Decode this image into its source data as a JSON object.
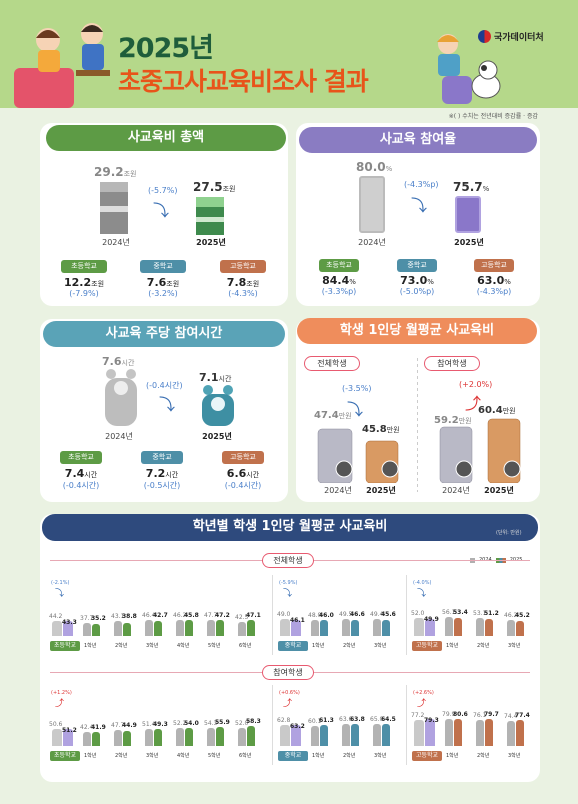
{
  "header": {
    "title_line1": "2025년",
    "title_line2": "초중고사교육비조사 결과",
    "org": "국가데이터처",
    "note": "※(    ) 수치는 전년대비 증감률 · 증감"
  },
  "total": {
    "title": "사교육비 총액",
    "y2024_label": "2024년",
    "y2025_label": "2025년",
    "v2024": "29.2",
    "v2025": "27.5",
    "unit": "조원",
    "change": "(-5.7%)",
    "schools": [
      {
        "tag": "초등학교",
        "value": "12.2",
        "unit": "조원",
        "change": "(-7.9%)"
      },
      {
        "tag": "중학교",
        "value": "7.6",
        "unit": "조원",
        "change": "(-3.2%)"
      },
      {
        "tag": "고등학교",
        "value": "7.8",
        "unit": "조원",
        "change": "(-4.3%)"
      }
    ]
  },
  "participation": {
    "title": "사교육 참여율",
    "y2024_label": "2024년",
    "y2025_label": "2025년",
    "v2024": "80.0",
    "v2025": "75.7",
    "unit": "%",
    "change": "(-4.3%p)",
    "schools": [
      {
        "tag": "초등학교",
        "value": "84.4",
        "unit": "%",
        "change": "(-3.3%p)"
      },
      {
        "tag": "중학교",
        "value": "73.0",
        "unit": "%",
        "change": "(-5.0%p)"
      },
      {
        "tag": "고등학교",
        "value": "63.0",
        "unit": "%",
        "change": "(-4.3%p)"
      }
    ]
  },
  "hours": {
    "title": "사교육 주당 참여시간",
    "y2024_label": "2024년",
    "y2025_label": "2025년",
    "v2024": "7.6",
    "v2025": "7.1",
    "unit": "시간",
    "change": "(-0.4시간)",
    "schools": [
      {
        "tag": "초등학교",
        "value": "7.4",
        "unit": "시간",
        "change": "(-0.4시간)"
      },
      {
        "tag": "중학교",
        "value": "7.2",
        "unit": "시간",
        "change": "(-0.5시간)"
      },
      {
        "tag": "고등학교",
        "value": "6.6",
        "unit": "시간",
        "change": "(-0.4시간)"
      }
    ]
  },
  "monthly": {
    "title": "학생 1인당 월평균 사교육비",
    "all": {
      "tag": "전체학생",
      "v2024": "47.4",
      "v2025": "45.8",
      "unit": "만원",
      "change": "(-3.5%)",
      "y2024_label": "2024년",
      "y2025_label": "2025년"
    },
    "part": {
      "tag": "참여학생",
      "v2024": "59.2",
      "v2025": "60.4",
      "unit": "만원",
      "change": "(+2.0%)",
      "y2024_label": "2024년",
      "y2025_label": "2025년"
    }
  },
  "grade": {
    "title": "학년별 학생 1인당 월평균 사교육비",
    "unit_note": "(단위: 만원)",
    "legend": [
      "2024",
      "2025"
    ],
    "sec1": "전체학생",
    "sec2": "참여학생"
  },
  "colors": {
    "green": "#5d9b45",
    "blue": "#4e8fa7",
    "orange": "#c0714c",
    "pink": "#e85a70",
    "purple": "#8a7cc2",
    "teal": "#5aa3b7",
    "salmon": "#ef8d5c",
    "navy": "#2e4a7d",
    "lavender": "#b0a2e0"
  },
  "chart_data": [
    {
      "type": "bar",
      "section": "전체학생",
      "group": "초등학교",
      "change": "(-2.1%)",
      "categories": [
        "초등학교",
        "1학년",
        "2학년",
        "3학년",
        "4학년",
        "5학년",
        "6학년"
      ],
      "series": [
        {
          "name": "2024",
          "values": [
            44.2,
            37.7,
            43.1,
            46.4,
            46.2,
            47.7,
            42.5
          ]
        },
        {
          "name": "2025",
          "values": [
            43.3,
            35.2,
            38.8,
            42.7,
            45.8,
            47.2,
            47.1
          ]
        }
      ]
    },
    {
      "type": "bar",
      "section": "전체학생",
      "group": "중학교",
      "change": "(-5.9%)",
      "categories": [
        "중학교",
        "1학년",
        "2학년",
        "3학년"
      ],
      "series": [
        {
          "name": "2024",
          "values": [
            49.0,
            48.0,
            49.5,
            49.4
          ]
        },
        {
          "name": "2025",
          "values": [
            46.1,
            46.0,
            46.6,
            45.6
          ]
        }
      ]
    },
    {
      "type": "bar",
      "section": "전체학생",
      "group": "고등학교",
      "change": "(-4.0%)",
      "categories": [
        "고등학교",
        "1학년",
        "2학년",
        "3학년"
      ],
      "series": [
        {
          "name": "2024",
          "values": [
            52.0,
            56.1,
            53.1,
            46.2
          ]
        },
        {
          "name": "2025",
          "values": [
            49.9,
            53.4,
            51.2,
            45.2
          ]
        }
      ]
    },
    {
      "type": "bar",
      "section": "참여학생",
      "group": "초등학교",
      "change": "(+1.2%)",
      "categories": [
        "초등학교",
        "1학년",
        "2학년",
        "3학년",
        "4학년",
        "5학년",
        "6학년"
      ],
      "series": [
        {
          "name": "2024",
          "values": [
            50.6,
            42.4,
            47.7,
            51.4,
            52.2,
            54.3,
            52.0
          ]
        },
        {
          "name": "2025",
          "values": [
            51.2,
            41.9,
            44.9,
            49.3,
            54.0,
            55.9,
            58.3
          ]
        }
      ]
    },
    {
      "type": "bar",
      "section": "참여학생",
      "group": "중학교",
      "change": "(+0.6%)",
      "categories": [
        "중학교",
        "1학년",
        "2학년",
        "3학년"
      ],
      "series": [
        {
          "name": "2024",
          "values": [
            62.8,
            60.1,
            63.6,
            65.0
          ]
        },
        {
          "name": "2025",
          "values": [
            63.2,
            61.3,
            63.8,
            64.5
          ]
        }
      ]
    },
    {
      "type": "bar",
      "section": "참여학생",
      "group": "고등학교",
      "change": "(+2.6%)",
      "categories": [
        "고등학교",
        "1학년",
        "2학년",
        "3학년"
      ],
      "series": [
        {
          "name": "2024",
          "values": [
            77.2,
            79.9,
            76.1,
            74.4
          ]
        },
        {
          "name": "2025",
          "values": [
            79.3,
            80.6,
            79.7,
            77.4
          ]
        }
      ]
    }
  ]
}
